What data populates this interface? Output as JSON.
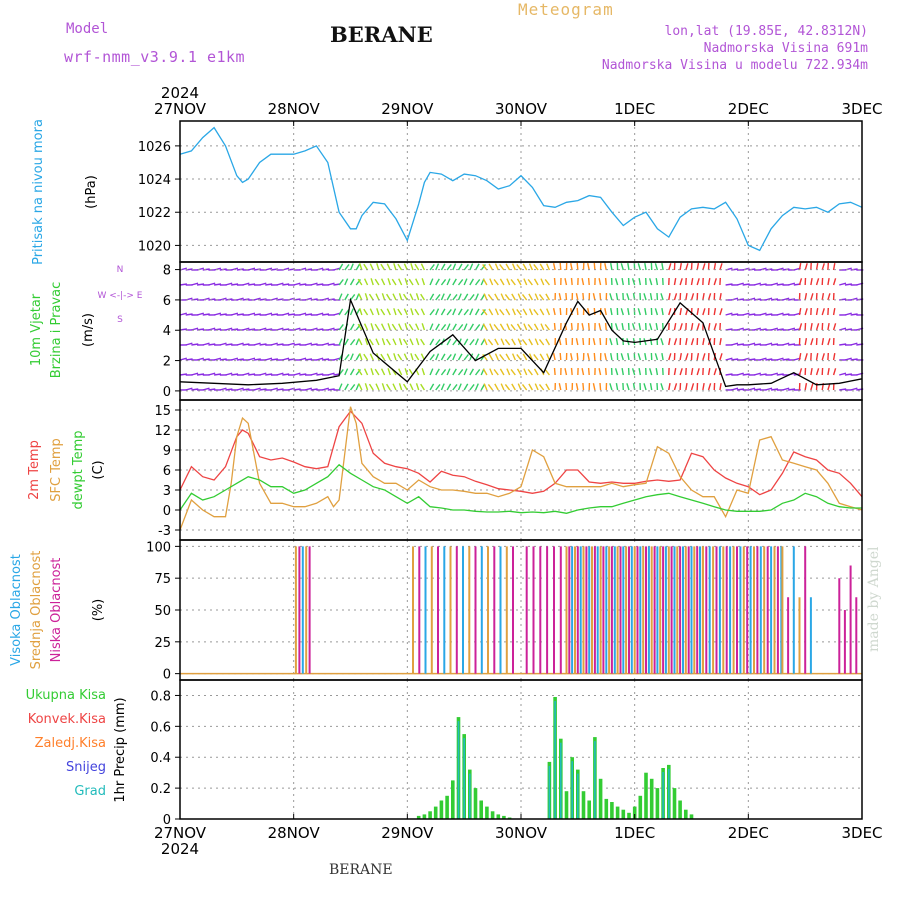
{
  "header": {
    "model_label": "Model",
    "model_name": "wrf-nmm_v3.9.1 e1km",
    "station": "BERANE",
    "title": "Meteogram",
    "coords": "lon,lat (19.85E, 42.8312N)",
    "elevation": "Nadmorska Visina 691m",
    "model_elevation": "Nadmorska Visina u modelu 722.934m"
  },
  "footer": {
    "station": "BERANE",
    "credit": "made by Angel"
  },
  "time_axis": {
    "year": "2024",
    "labels": [
      "27NOV",
      "28NOV",
      "29NOV",
      "30NOV",
      "1DEC",
      "2DEC",
      "3DEC"
    ]
  },
  "colors": {
    "pressure": "#2aa7e6",
    "wind_label": "#33cc33",
    "temp2m": "#ee4444",
    "sfc": "#e0a040",
    "dewpt": "#33cc33",
    "cloud_high": "#2aa7e6",
    "cloud_mid": "#e0a040",
    "cloud_low": "#cc2299",
    "precip_total": "#33cc33",
    "precip_conv": "#ee4444",
    "precip_ice": "#ff7f2a",
    "precip_snow": "#4444dd",
    "precip_grad": "#22bbbb",
    "header_purple": "#b255d6",
    "title_gold": "#e6b866"
  },
  "chart_data": [
    {
      "type": "line",
      "ylabel_main": "Pritisak na nivou mora",
      "unit": "(hPa)",
      "ylim": [
        1019,
        1027.5
      ],
      "yticks": [
        1020,
        1022,
        1024,
        1026
      ],
      "grid": true,
      "series": [
        {
          "name": "",
          "x": [
            0,
            0.1,
            0.2,
            0.3,
            0.4,
            0.5,
            0.55,
            0.6,
            0.7,
            0.8,
            0.9,
            1.0,
            1.1,
            1.2,
            1.3,
            1.4,
            1.5,
            1.55,
            1.6,
            1.7,
            1.8,
            1.9,
            2.0,
            2.1,
            2.15,
            2.2,
            2.3,
            2.4,
            2.5,
            2.6,
            2.7,
            2.8,
            2.9,
            3.0,
            3.1,
            3.2,
            3.3,
            3.4,
            3.5,
            3.6,
            3.7,
            3.8,
            3.9,
            4.0,
            4.1,
            4.2,
            4.3,
            4.4,
            4.5,
            4.6,
            4.7,
            4.8,
            4.9,
            5.0,
            5.1,
            5.2,
            5.3,
            5.4,
            5.5,
            5.6,
            5.7,
            5.8,
            5.9,
            6.0
          ],
          "values": [
            1025.5,
            1025.7,
            1026.5,
            1027.1,
            1026.0,
            1024.2,
            1023.8,
            1024.0,
            1025.0,
            1025.5,
            1025.5,
            1025.5,
            1025.7,
            1026.0,
            1025.0,
            1022.0,
            1021.0,
            1021.0,
            1021.8,
            1022.6,
            1022.5,
            1021.6,
            1020.3,
            1022.5,
            1023.8,
            1024.4,
            1024.3,
            1023.9,
            1024.3,
            1024.2,
            1023.9,
            1023.4,
            1023.6,
            1024.2,
            1023.5,
            1022.4,
            1022.3,
            1022.6,
            1022.7,
            1023.0,
            1022.9,
            1022.0,
            1021.2,
            1021.7,
            1022.0,
            1021.0,
            1020.5,
            1021.7,
            1022.2,
            1022.3,
            1022.2,
            1022.6,
            1021.6,
            1020.0,
            1019.7,
            1021.0,
            1021.8,
            1022.3,
            1022.2,
            1022.3,
            1022.0,
            1022.5,
            1022.6,
            1022.3
          ]
        }
      ]
    },
    {
      "type": "line",
      "ylabel_main": "10m Vjetar",
      "ylabel_sub": "Brzina i Pravac",
      "unit": "(m/s)",
      "compass_label": "W <-|-> E",
      "compass_top": "N",
      "compass_bottom": "S",
      "ylim": [
        -0.6,
        8.5
      ],
      "yticks": [
        0,
        2,
        4,
        6,
        8
      ],
      "grid": true,
      "series": [
        {
          "name": "",
          "x": [
            0,
            0.3,
            0.6,
            0.9,
            1.2,
            1.4,
            1.5,
            1.7,
            2.0,
            2.2,
            2.4,
            2.6,
            2.8,
            3.0,
            3.2,
            3.4,
            3.5,
            3.6,
            3.7,
            3.8,
            3.9,
            4.0,
            4.2,
            4.4,
            4.6,
            4.8,
            4.9,
            5.0,
            5.2,
            5.4,
            5.6,
            5.8,
            6.0
          ],
          "values": [
            0.6,
            0.5,
            0.4,
            0.5,
            0.7,
            1.0,
            6.0,
            2.5,
            0.6,
            2.6,
            3.7,
            2.0,
            2.8,
            2.8,
            1.2,
            4.5,
            5.9,
            5.0,
            5.3,
            4.0,
            3.3,
            3.2,
            3.4,
            5.8,
            4.5,
            0.3,
            0.4,
            0.4,
            0.5,
            1.2,
            0.4,
            0.5,
            0.8
          ]
        }
      ]
    },
    {
      "type": "line",
      "ylabel_main": "2m Temp",
      "ylabel_mid": "SFC Temp",
      "ylabel_sub": "dewpt Temp",
      "unit": "(C)",
      "ylim": [
        -4.5,
        16.5
      ],
      "yticks": [
        -3,
        0,
        3,
        6,
        9,
        12,
        15
      ],
      "grid": true,
      "series": [
        {
          "name": "",
          "x": [
            0,
            0.1,
            0.2,
            0.3,
            0.4,
            0.5,
            0.55,
            0.6,
            0.7,
            0.8,
            0.9,
            1.0,
            1.1,
            1.2,
            1.3,
            1.4,
            1.5,
            1.6,
            1.7,
            1.8,
            1.9,
            2.0,
            2.1,
            2.2,
            2.3,
            2.4,
            2.5,
            2.6,
            2.7,
            2.8,
            2.9,
            3.0,
            3.1,
            3.2,
            3.3,
            3.4,
            3.5,
            3.6,
            3.7,
            3.8,
            3.9,
            4.0,
            4.1,
            4.2,
            4.3,
            4.4,
            4.5,
            4.6,
            4.7,
            4.8,
            4.9,
            5.0,
            5.1,
            5.2,
            5.3,
            5.4,
            5.5,
            5.6,
            5.7,
            5.8,
            5.9,
            6.0
          ],
          "values": [
            3.0,
            6.5,
            5.0,
            4.5,
            6.5,
            11.0,
            12.0,
            11.5,
            8.0,
            7.5,
            7.8,
            7.2,
            6.5,
            6.2,
            6.5,
            12.5,
            14.8,
            13.0,
            8.5,
            7.0,
            6.5,
            6.2,
            5.5,
            4.2,
            5.8,
            5.2,
            5.0,
            4.3,
            3.8,
            3.2,
            3.0,
            2.8,
            2.5,
            2.8,
            4.0,
            6.0,
            6.0,
            4.2,
            4.0,
            4.2,
            4.0,
            4.0,
            4.3,
            4.5,
            4.3,
            4.5,
            8.5,
            8.0,
            6.0,
            4.8,
            4.0,
            3.5,
            2.3,
            3.0,
            5.5,
            8.7,
            8.0,
            7.5,
            6.0,
            5.5,
            4.0,
            2.0
          ]
        },
        {
          "name": "",
          "x": [
            0,
            0.1,
            0.2,
            0.3,
            0.4,
            0.45,
            0.5,
            0.55,
            0.6,
            0.7,
            0.8,
            0.9,
            1.0,
            1.1,
            1.2,
            1.3,
            1.35,
            1.4,
            1.5,
            1.55,
            1.6,
            1.7,
            1.8,
            1.9,
            2.0,
            2.1,
            2.2,
            2.3,
            2.4,
            2.5,
            2.6,
            2.7,
            2.8,
            2.9,
            3.0,
            3.1,
            3.2,
            3.3,
            3.4,
            3.5,
            3.6,
            3.7,
            3.8,
            3.9,
            4.0,
            4.1,
            4.2,
            4.3,
            4.4,
            4.5,
            4.6,
            4.7,
            4.8,
            4.9,
            5.0,
            5.1,
            5.2,
            5.3,
            5.4,
            5.5,
            5.6,
            5.7,
            5.8,
            5.9,
            6.0
          ],
          "values": [
            -3.0,
            1.5,
            0.0,
            -1.0,
            -1.0,
            4.0,
            11.0,
            13.8,
            13.0,
            4.0,
            1.0,
            1.0,
            0.5,
            0.5,
            1.0,
            2.0,
            0.5,
            1.5,
            15.5,
            13.0,
            7.0,
            5.0,
            4.0,
            4.0,
            3.0,
            4.5,
            3.5,
            3.0,
            3.0,
            2.8,
            2.5,
            2.5,
            2.0,
            2.5,
            3.5,
            9.0,
            8.0,
            4.0,
            3.5,
            3.5,
            3.5,
            3.5,
            4.0,
            3.5,
            3.8,
            4.0,
            9.5,
            8.5,
            5.0,
            3.0,
            2.0,
            2.0,
            -1.0,
            3.0,
            2.5,
            10.5,
            11.0,
            7.5,
            7.0,
            6.5,
            6.0,
            4.0,
            1.0,
            0.5,
            0.0
          ]
        },
        {
          "name": "",
          "x": [
            0,
            0.1,
            0.2,
            0.3,
            0.4,
            0.5,
            0.6,
            0.7,
            0.8,
            0.9,
            1.0,
            1.1,
            1.2,
            1.3,
            1.4,
            1.5,
            1.6,
            1.7,
            1.8,
            1.9,
            2.0,
            2.1,
            2.2,
            2.3,
            2.4,
            2.5,
            2.6,
            2.7,
            2.8,
            2.9,
            3.0,
            3.1,
            3.2,
            3.3,
            3.4,
            3.5,
            3.6,
            3.7,
            3.8,
            3.9,
            4.0,
            4.1,
            4.2,
            4.3,
            4.4,
            4.5,
            4.6,
            4.7,
            4.8,
            4.9,
            5.0,
            5.1,
            5.2,
            5.3,
            5.4,
            5.5,
            5.6,
            5.7,
            5.8,
            5.9,
            6.0
          ],
          "values": [
            0.0,
            2.5,
            1.5,
            2.0,
            3.0,
            4.0,
            5.0,
            4.5,
            3.5,
            3.5,
            2.5,
            3.0,
            4.0,
            5.0,
            6.8,
            5.5,
            4.5,
            3.5,
            3.0,
            2.0,
            1.0,
            2.0,
            0.5,
            0.3,
            0.0,
            0.0,
            -0.2,
            -0.3,
            -0.3,
            -0.2,
            -0.4,
            -0.3,
            -0.4,
            -0.2,
            -0.5,
            0.0,
            0.3,
            0.5,
            0.5,
            1.0,
            1.5,
            2.0,
            2.3,
            2.5,
            2.0,
            1.5,
            1.0,
            0.5,
            0.0,
            -0.2,
            -0.2,
            -0.2,
            0.0,
            1.0,
            1.5,
            2.5,
            2.0,
            1.0,
            0.5,
            0.3,
            0.3
          ]
        }
      ]
    },
    {
      "type": "bar",
      "ylabel_main": "Visoka Oblacnost",
      "ylabel_mid": "Srednja Oblacnost",
      "ylabel_sub": "Niska Oblacnost",
      "unit": "(%)",
      "ylim": [
        -5,
        105
      ],
      "yticks": [
        0,
        25,
        50,
        75,
        100
      ],
      "grid": true
    },
    {
      "type": "bar",
      "labels": [
        "Ukupna Kisa",
        "Konvek.Kisa",
        "Zaledj.Kisa",
        "Snijeg",
        "Grad"
      ],
      "unit": "1hr Precip (mm)",
      "ylim": [
        0,
        0.9
      ],
      "yticks": [
        0,
        0.2,
        0.4,
        0.6,
        0.8
      ],
      "grid": true,
      "x": [
        2.1,
        2.15,
        2.2,
        2.25,
        2.3,
        2.35,
        2.4,
        2.45,
        2.5,
        2.55,
        2.6,
        2.65,
        2.7,
        2.75,
        2.8,
        2.85,
        2.9,
        3.25,
        3.3,
        3.35,
        3.4,
        3.45,
        3.5,
        3.55,
        3.6,
        3.65,
        3.7,
        3.75,
        3.8,
        3.85,
        3.9,
        3.95,
        4.0,
        4.05,
        4.1,
        4.15,
        4.2,
        4.25,
        4.3,
        4.35,
        4.4,
        4.45,
        4.5
      ],
      "values": [
        0.02,
        0.03,
        0.05,
        0.08,
        0.12,
        0.15,
        0.25,
        0.66,
        0.55,
        0.32,
        0.2,
        0.12,
        0.08,
        0.05,
        0.03,
        0.02,
        0.01,
        0.37,
        0.79,
        0.52,
        0.18,
        0.4,
        0.32,
        0.18,
        0.12,
        0.53,
        0.26,
        0.13,
        0.11,
        0.08,
        0.06,
        0.04,
        0.08,
        0.15,
        0.3,
        0.26,
        0.2,
        0.33,
        0.35,
        0.2,
        0.12,
        0.06,
        0.03
      ]
    }
  ]
}
